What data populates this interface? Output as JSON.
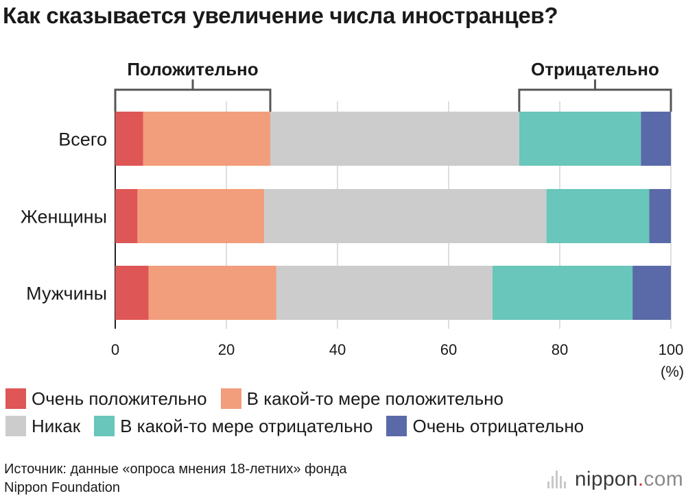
{
  "title": "Как сказывается увеличение числа иностранцев?",
  "groups": {
    "positive": "Положительно",
    "negative": "Отрицательно"
  },
  "percent_unit": "(%)",
  "colors": {
    "very_positive": "#de5656",
    "somewhat_positive": "#f29d7b",
    "neutral": "#cccccc",
    "somewhat_negative": "#68c6ba",
    "very_negative": "#5a6aa8"
  },
  "chart_data": {
    "type": "bar",
    "orientation": "horizontal",
    "stacked": true,
    "categories": [
      "Всего",
      "Женщины",
      "Мужчины"
    ],
    "series": [
      {
        "name": "Очень положительно",
        "color_key": "very_positive",
        "values": [
          5.0,
          4.0,
          6.0
        ]
      },
      {
        "name": "В какой-то мере положительно",
        "color_key": "somewhat_positive",
        "values": [
          22.9,
          22.8,
          23.0
        ]
      },
      {
        "name": "Никак",
        "color_key": "neutral",
        "values": [
          44.8,
          50.8,
          38.9
        ]
      },
      {
        "name": "В какой-то мере отрицательно",
        "color_key": "somewhat_negative",
        "values": [
          21.9,
          18.5,
          25.2
        ]
      },
      {
        "name": "Очень отрицательно",
        "color_key": "very_negative",
        "values": [
          5.4,
          3.9,
          6.9
        ]
      }
    ],
    "xlim": [
      0,
      100
    ],
    "xticks": [
      0,
      20,
      40,
      60,
      80,
      100
    ],
    "xlabel": "(%)",
    "grid": true
  },
  "legend_rows": [
    [
      {
        "label": "Очень положительно",
        "color_key": "very_positive"
      },
      {
        "label": "В какой-то мере положительно",
        "color_key": "somewhat_positive"
      }
    ],
    [
      {
        "label": "Никак",
        "color_key": "neutral"
      },
      {
        "label": "В какой-то мере отрицательно",
        "color_key": "somewhat_negative"
      },
      {
        "label": "Очень отрицательно",
        "color_key": "very_negative"
      }
    ]
  ],
  "source": {
    "line1": "Источник: данные «опроса мнения 18-летних» фонда",
    "line2": "Nippon Foundation"
  },
  "logo": {
    "name": "nippon",
    "dot": ".",
    "tld": "com"
  }
}
